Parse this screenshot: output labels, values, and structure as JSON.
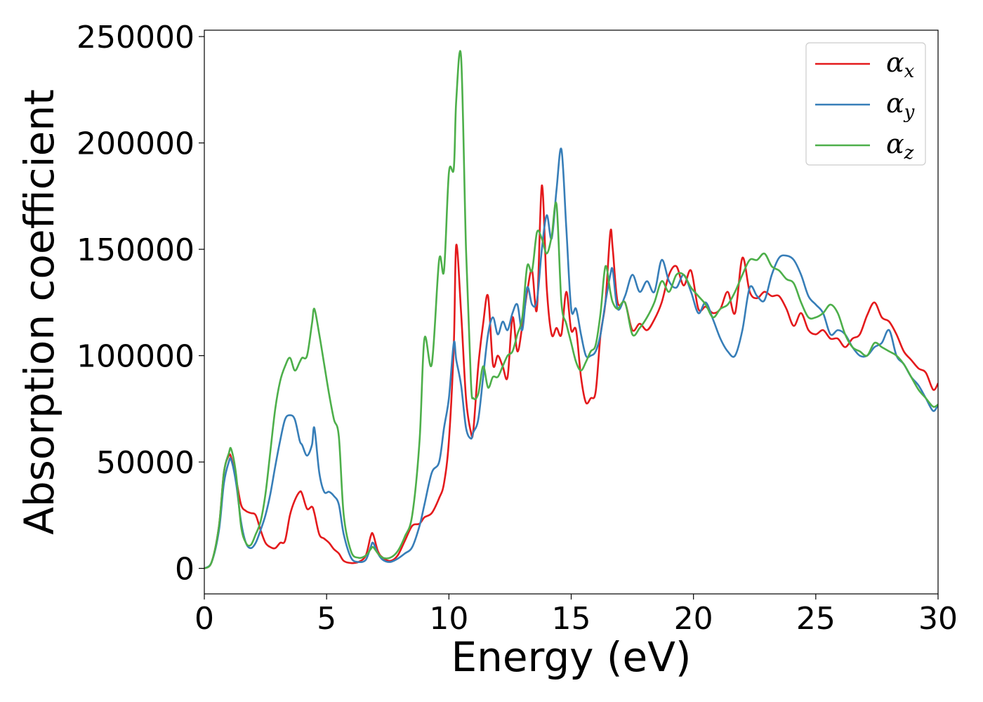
{
  "chart_data": {
    "type": "line",
    "title": "",
    "xlabel": "Energy (eV)",
    "ylabel": "Absorption coefficient",
    "xlim": [
      0,
      30
    ],
    "ylim": [
      -12000,
      253000
    ],
    "xticks": [
      0,
      5,
      10,
      15,
      20,
      25,
      30
    ],
    "yticks": [
      0,
      50000,
      100000,
      150000,
      200000,
      250000
    ],
    "xtick_labels": [
      "0",
      "5",
      "10",
      "15",
      "20",
      "25",
      "30"
    ],
    "ytick_labels": [
      "0",
      "50000",
      "100000",
      "150000",
      "200000",
      "250000"
    ],
    "grid": false,
    "legend_position": "top-right",
    "series": [
      {
        "name": "α_x",
        "label_base": "α",
        "label_sub": "x",
        "color": "#e41a1c",
        "x": [
          0,
          0.3,
          0.6,
          0.8,
          1.0,
          1.1,
          1.3,
          1.5,
          1.7,
          1.9,
          2.1,
          2.3,
          2.5,
          2.7,
          2.9,
          3.1,
          3.3,
          3.5,
          3.7,
          3.9,
          4.0,
          4.2,
          4.4,
          4.5,
          4.7,
          4.9,
          5.1,
          5.3,
          5.5,
          5.7,
          6.0,
          6.3,
          6.6,
          6.8,
          6.9,
          7.1,
          7.3,
          7.6,
          7.9,
          8.2,
          8.5,
          8.8,
          9.0,
          9.3,
          9.6,
          9.8,
          10.0,
          10.2,
          10.3,
          10.5,
          10.7,
          10.9,
          11.0,
          11.2,
          11.4,
          11.6,
          11.8,
          12.0,
          12.2,
          12.4,
          12.6,
          12.8,
          13.0,
          13.2,
          13.4,
          13.6,
          13.8,
          14.0,
          14.2,
          14.4,
          14.6,
          14.8,
          15.0,
          15.2,
          15.4,
          15.6,
          15.8,
          16.0,
          16.2,
          16.4,
          16.6,
          16.7,
          16.9,
          17.2,
          17.5,
          17.8,
          18.1,
          18.4,
          18.7,
          19.0,
          19.3,
          19.6,
          19.9,
          20.2,
          20.5,
          20.8,
          21.1,
          21.4,
          21.7,
          22.0,
          22.3,
          22.6,
          22.9,
          23.2,
          23.5,
          23.8,
          24.1,
          24.4,
          24.7,
          25.0,
          25.3,
          25.6,
          25.9,
          26.2,
          26.5,
          26.8,
          27.1,
          27.4,
          27.7,
          28.0,
          28.3,
          28.6,
          28.9,
          29.2,
          29.5,
          29.8,
          30.0
        ],
        "y": [
          0,
          3000,
          20000,
          45000,
          53000,
          52000,
          42000,
          30000,
          27000,
          26000,
          25000,
          18000,
          12000,
          10000,
          9500,
          12000,
          13000,
          25000,
          32000,
          36000,
          35000,
          28000,
          29000,
          26000,
          16000,
          14000,
          12000,
          9000,
          7000,
          3500,
          2500,
          3000,
          6000,
          15000,
          16000,
          8000,
          5000,
          3500,
          6000,
          13000,
          20000,
          21000,
          24000,
          26000,
          33000,
          40000,
          60000,
          105000,
          152000,
          120000,
          80000,
          64000,
          65000,
          95000,
          115000,
          128000,
          96000,
          100000,
          95000,
          90000,
          118000,
          102000,
          114000,
          130000,
          140000,
          122000,
          180000,
          132000,
          110000,
          113000,
          110000,
          130000,
          112000,
          112000,
          90000,
          78000,
          80000,
          83000,
          110000,
          125000,
          158000,
          150000,
          125000,
          125000,
          112000,
          115000,
          112000,
          117000,
          125000,
          138000,
          142000,
          133000,
          140000,
          122000,
          123000,
          120000,
          122000,
          130000,
          120000,
          146000,
          130000,
          127000,
          130000,
          128000,
          128000,
          122000,
          114000,
          120000,
          112000,
          110000,
          112000,
          108000,
          108000,
          104000,
          108000,
          110000,
          119000,
          125000,
          118000,
          116000,
          110000,
          102000,
          98000,
          94000,
          92000,
          84000,
          87000
        ]
      },
      {
        "name": "α_y",
        "label_base": "α",
        "label_sub": "y",
        "color": "#377eb8",
        "x": [
          0,
          0.3,
          0.6,
          0.8,
          1.0,
          1.1,
          1.3,
          1.5,
          1.7,
          1.9,
          2.1,
          2.3,
          2.5,
          2.7,
          2.9,
          3.1,
          3.3,
          3.5,
          3.7,
          3.9,
          4.0,
          4.2,
          4.4,
          4.5,
          4.7,
          4.9,
          5.1,
          5.3,
          5.5,
          5.7,
          6.0,
          6.3,
          6.6,
          6.8,
          6.9,
          7.1,
          7.3,
          7.6,
          7.9,
          8.2,
          8.5,
          8.8,
          9.0,
          9.3,
          9.6,
          9.8,
          10.0,
          10.2,
          10.3,
          10.5,
          10.7,
          10.9,
          11.0,
          11.2,
          11.4,
          11.6,
          11.8,
          12.0,
          12.2,
          12.4,
          12.6,
          12.8,
          13.0,
          13.2,
          13.4,
          13.6,
          13.8,
          14.0,
          14.2,
          14.4,
          14.6,
          14.8,
          15.0,
          15.2,
          15.4,
          15.6,
          15.8,
          16.0,
          16.2,
          16.4,
          16.6,
          16.7,
          16.9,
          17.2,
          17.5,
          17.8,
          18.1,
          18.4,
          18.7,
          19.0,
          19.3,
          19.6,
          19.9,
          20.2,
          20.5,
          20.8,
          21.1,
          21.4,
          21.7,
          22.0,
          22.3,
          22.6,
          22.9,
          23.2,
          23.5,
          23.8,
          24.1,
          24.4,
          24.7,
          25.0,
          25.3,
          25.6,
          25.9,
          26.2,
          26.5,
          26.8,
          27.1,
          27.4,
          27.7,
          28.0,
          28.3,
          28.6,
          28.9,
          29.2,
          29.5,
          29.8,
          30.0
        ],
        "y": [
          0,
          3000,
          18000,
          40000,
          50000,
          51000,
          40000,
          22000,
          12000,
          9500,
          12000,
          18000,
          25000,
          35000,
          48000,
          60000,
          70000,
          72000,
          70000,
          60000,
          58000,
          53000,
          58000,
          66000,
          45000,
          36000,
          36000,
          34000,
          30000,
          16000,
          5000,
          3000,
          4000,
          10000,
          12000,
          7000,
          4000,
          3000,
          4500,
          7000,
          10000,
          20000,
          30000,
          45000,
          50000,
          66000,
          80000,
          106000,
          98000,
          86000,
          66000,
          61000,
          64000,
          70000,
          90000,
          110000,
          118000,
          110000,
          116000,
          112000,
          120000,
          124000,
          112000,
          132000,
          124000,
          126000,
          150000,
          166000,
          155000,
          178000,
          197000,
          160000,
          122000,
          122000,
          110000,
          100000,
          100000,
          102000,
          110000,
          125000,
          138000,
          140000,
          122000,
          128000,
          138000,
          130000,
          135000,
          130000,
          145000,
          135000,
          132000,
          138000,
          130000,
          120000,
          125000,
          117000,
          108000,
          102000,
          100000,
          112000,
          132000,
          128000,
          126000,
          138000,
          146000,
          147000,
          145000,
          138000,
          128000,
          124000,
          120000,
          110000,
          112000,
          110000,
          104000,
          100000,
          100000,
          104000,
          106000,
          112000,
          100000,
          96000,
          90000,
          86000,
          80000,
          74000,
          77000
        ]
      },
      {
        "name": "α_z",
        "label_base": "α",
        "label_sub": "z",
        "color": "#4daf4a",
        "x": [
          0,
          0.3,
          0.6,
          0.8,
          1.0,
          1.1,
          1.3,
          1.5,
          1.7,
          1.9,
          2.1,
          2.3,
          2.5,
          2.7,
          2.9,
          3.1,
          3.3,
          3.5,
          3.7,
          3.9,
          4.0,
          4.2,
          4.4,
          4.5,
          4.7,
          4.9,
          5.1,
          5.3,
          5.5,
          5.7,
          6.0,
          6.3,
          6.6,
          6.8,
          6.9,
          7.1,
          7.3,
          7.6,
          7.9,
          8.2,
          8.5,
          8.8,
          9.0,
          9.3,
          9.6,
          9.8,
          10.0,
          10.2,
          10.3,
          10.5,
          10.7,
          10.9,
          11.0,
          11.2,
          11.4,
          11.6,
          11.8,
          12.0,
          12.2,
          12.4,
          12.6,
          12.8,
          13.0,
          13.2,
          13.4,
          13.6,
          13.8,
          14.0,
          14.2,
          14.4,
          14.6,
          14.8,
          15.0,
          15.2,
          15.4,
          15.6,
          15.8,
          16.0,
          16.2,
          16.4,
          16.6,
          16.7,
          16.9,
          17.2,
          17.5,
          17.8,
          18.1,
          18.4,
          18.7,
          19.0,
          19.3,
          19.6,
          19.9,
          20.2,
          20.5,
          20.8,
          21.1,
          21.4,
          21.7,
          22.0,
          22.3,
          22.6,
          22.9,
          23.2,
          23.5,
          23.8,
          24.1,
          24.4,
          24.7,
          25.0,
          25.3,
          25.6,
          25.9,
          26.2,
          26.5,
          26.8,
          27.1,
          27.4,
          27.7,
          28.0,
          28.3,
          28.6,
          28.9,
          29.2,
          29.5,
          29.8,
          30.0
        ],
        "y": [
          0,
          3000,
          20000,
          45000,
          54000,
          56000,
          44000,
          20000,
          12000,
          11000,
          16000,
          22000,
          35000,
          55000,
          75000,
          88000,
          95000,
          99000,
          93000,
          97000,
          99000,
          100000,
          115000,
          122000,
          110000,
          96000,
          82000,
          70000,
          62000,
          25000,
          8000,
          5000,
          6000,
          9000,
          10000,
          7000,
          5000,
          5000,
          8000,
          15000,
          25000,
          60000,
          108000,
          96000,
          145000,
          140000,
          186000,
          188000,
          220000,
          240000,
          150000,
          88000,
          80000,
          82000,
          95000,
          85000,
          90000,
          90000,
          95000,
          100000,
          102000,
          110000,
          118000,
          142000,
          140000,
          158000,
          155000,
          148000,
          156000,
          171000,
          125000,
          115000,
          106000,
          97000,
          93000,
          97000,
          102000,
          105000,
          120000,
          142000,
          130000,
          125000,
          122000,
          125000,
          110000,
          113000,
          118000,
          125000,
          135000,
          130000,
          138000,
          138000,
          132000,
          128000,
          124000,
          118000,
          122000,
          124000,
          130000,
          138000,
          145000,
          145000,
          148000,
          142000,
          140000,
          136000,
          134000,
          125000,
          118000,
          118000,
          120000,
          124000,
          120000,
          110000,
          104000,
          102000,
          100000,
          106000,
          104000,
          102000,
          100000,
          96000,
          90000,
          84000,
          80000,
          76000,
          77000
        ]
      }
    ]
  }
}
